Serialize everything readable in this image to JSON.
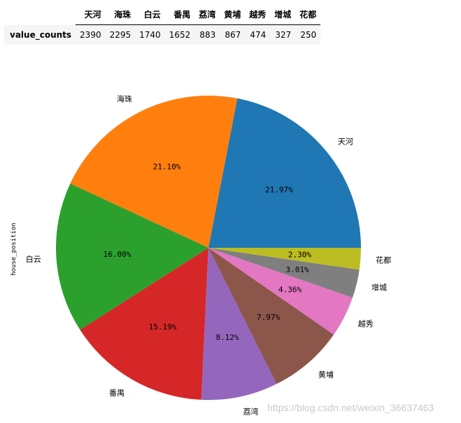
{
  "table": {
    "headers": [
      "天河",
      "海珠",
      "白云",
      "番禺",
      "荔湾",
      "黄埔",
      "越秀",
      "增城",
      "花都"
    ],
    "row_label": "value_counts",
    "values": [
      "2390",
      "2295",
      "1740",
      "1652",
      "883",
      "867",
      "474",
      "327",
      "250"
    ]
  },
  "chart_data": {
    "type": "pie",
    "ylabel": "house_position",
    "labels": [
      "天河",
      "海珠",
      "白云",
      "番禺",
      "荔湾",
      "黄埔",
      "越秀",
      "增城",
      "花都"
    ],
    "values": [
      2390,
      2295,
      1740,
      1652,
      883,
      867,
      474,
      327,
      250
    ],
    "percent_labels": [
      "21.97%",
      "21.10%",
      "16.00%",
      "15.19%",
      "8.12%",
      "7.97%",
      "4.36%",
      "3.01%",
      "2.30%"
    ],
    "colors": [
      "#1f77b4",
      "#ff7f0e",
      "#2ca02c",
      "#d62728",
      "#9467bd",
      "#8c564b",
      "#e377c2",
      "#7f7f7f",
      "#bcbd22"
    ],
    "start_angle_deg": 0,
    "direction": "counterclockwise"
  },
  "watermark": "https://blog.csdn.net/weixin_36637463"
}
